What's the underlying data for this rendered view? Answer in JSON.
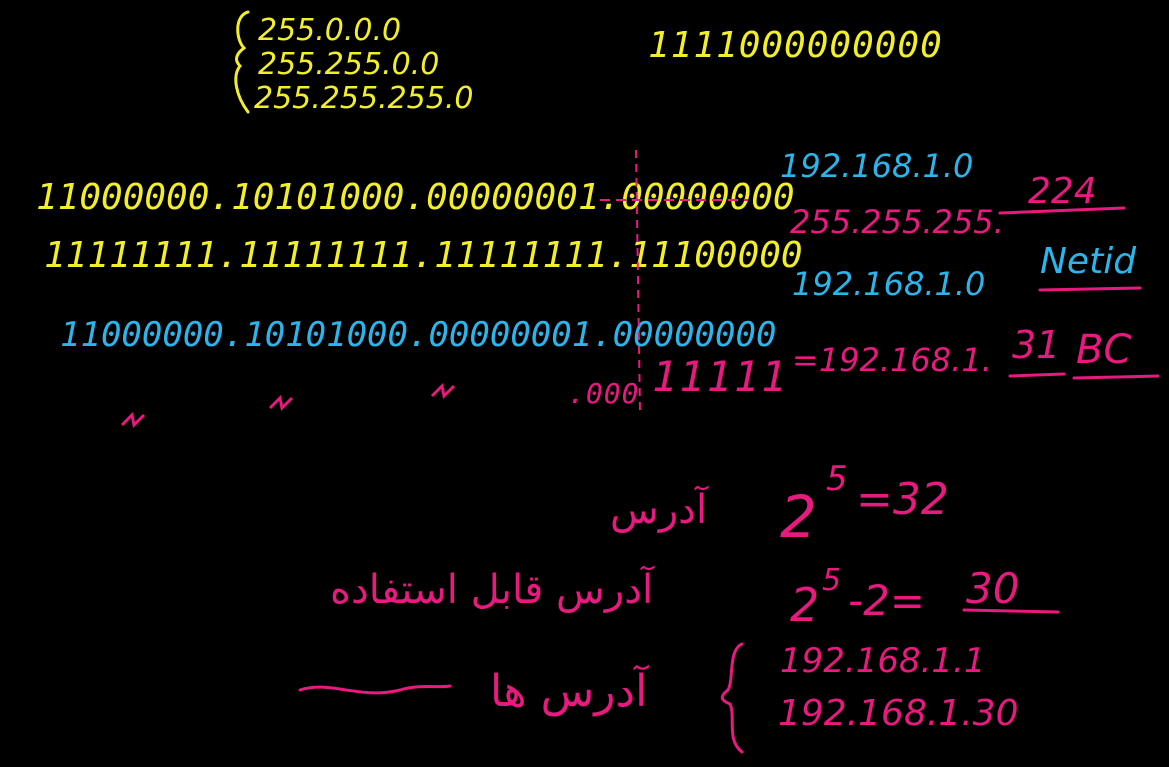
{
  "colors": {
    "background": "#000000",
    "yellow": "#f2ef2a",
    "cyan": "#2bb5ea",
    "magenta": "#e8197f"
  },
  "masks": [
    "255.0.0.0",
    "255.255.0.0",
    "255.255.255.0"
  ],
  "binary_top": "1111000000000",
  "yellow_rows": {
    "address_bits": "11000000.10101000.00000001.00000000",
    "mask_bits": "11111111.11111111.11111111.11100000"
  },
  "cyan_rows": {
    "network_bits": "11000000.10101000.00000001.00000000"
  },
  "ditto_row": {
    "tail": ".000",
    "ones": "11111"
  },
  "right_column": {
    "ip": "192.168.1.0",
    "mask_prefix": "255.255.255.",
    "mask_last": "224",
    "netid_ip": "192.168.1.0",
    "netid_label": "Netid",
    "bc_prefix": "=192.168.1.",
    "bc_last": "31",
    "bc_label": "BC"
  },
  "bottom": {
    "line1_fa": "آدرس",
    "line1_math": "2^5=32",
    "line1_base": "2",
    "line1_exp": "5",
    "line1_rest": "=32",
    "line2_fa": "آدرس قابل استفاده",
    "line2_base": "2",
    "line2_exp": "5",
    "line2_mid": "-2=",
    "line2_result": "30",
    "line3_fa": "آدرس ها",
    "range_first": "192.168.1.1",
    "range_last": "192.168.1.30"
  }
}
